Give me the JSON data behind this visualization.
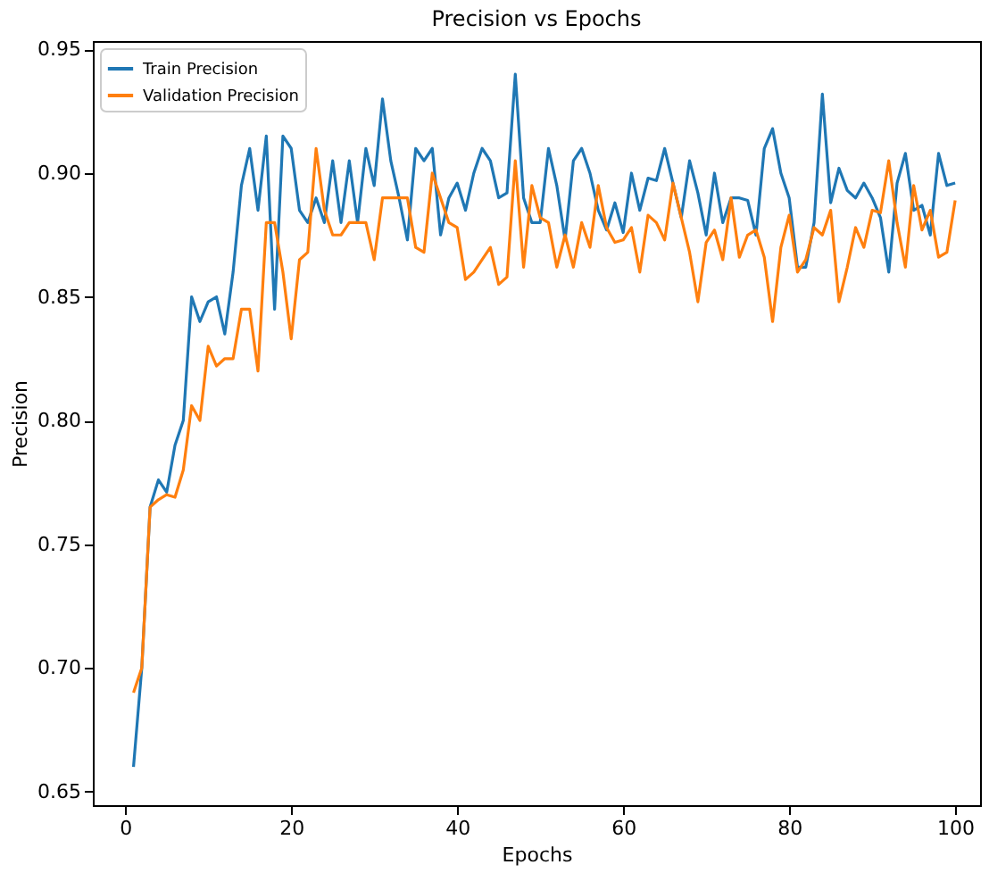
{
  "chart_data": {
    "type": "line",
    "title": "Precision vs Epochs",
    "xlabel": "Epochs",
    "ylabel": "Precision",
    "x": [
      1,
      2,
      3,
      4,
      5,
      6,
      7,
      8,
      9,
      10,
      11,
      12,
      13,
      14,
      15,
      16,
      17,
      18,
      19,
      20,
      21,
      22,
      23,
      24,
      25,
      26,
      27,
      28,
      29,
      30,
      31,
      32,
      33,
      34,
      35,
      36,
      37,
      38,
      39,
      40,
      41,
      42,
      43,
      44,
      45,
      46,
      47,
      48,
      49,
      50,
      51,
      52,
      53,
      54,
      55,
      56,
      57,
      58,
      59,
      60,
      61,
      62,
      63,
      64,
      65,
      66,
      67,
      68,
      69,
      70,
      71,
      72,
      73,
      74,
      75,
      76,
      77,
      78,
      79,
      80,
      81,
      82,
      83,
      84,
      85,
      86,
      87,
      88,
      89,
      90,
      91,
      92,
      93,
      94,
      95,
      96,
      97,
      98,
      99,
      100
    ],
    "series": [
      {
        "name": "Train Precision",
        "color": "#1f77b4",
        "values": [
          0.66,
          0.7,
          0.765,
          0.776,
          0.771,
          0.79,
          0.8,
          0.85,
          0.84,
          0.848,
          0.85,
          0.835,
          0.86,
          0.895,
          0.91,
          0.885,
          0.915,
          0.845,
          0.915,
          0.91,
          0.885,
          0.88,
          0.89,
          0.88,
          0.905,
          0.88,
          0.905,
          0.88,
          0.91,
          0.895,
          0.93,
          0.905,
          0.89,
          0.873,
          0.91,
          0.905,
          0.91,
          0.875,
          0.89,
          0.896,
          0.885,
          0.9,
          0.91,
          0.905,
          0.89,
          0.892,
          0.94,
          0.89,
          0.88,
          0.88,
          0.91,
          0.895,
          0.873,
          0.905,
          0.91,
          0.9,
          0.885,
          0.877,
          0.888,
          0.876,
          0.9,
          0.885,
          0.898,
          0.897,
          0.91,
          0.896,
          0.882,
          0.905,
          0.892,
          0.875,
          0.9,
          0.88,
          0.89,
          0.89,
          0.889,
          0.875,
          0.91,
          0.918,
          0.9,
          0.89,
          0.862,
          0.862,
          0.88,
          0.932,
          0.888,
          0.902,
          0.893,
          0.89,
          0.896,
          0.89,
          0.882,
          0.86,
          0.896,
          0.908,
          0.885,
          0.887,
          0.875,
          0.908,
          0.895,
          0.896
        ]
      },
      {
        "name": "Validation Precision",
        "color": "#ff7f0e",
        "values": [
          0.69,
          0.7,
          0.765,
          0.768,
          0.77,
          0.769,
          0.78,
          0.806,
          0.8,
          0.83,
          0.822,
          0.825,
          0.825,
          0.845,
          0.845,
          0.82,
          0.88,
          0.88,
          0.86,
          0.833,
          0.865,
          0.868,
          0.91,
          0.885,
          0.875,
          0.875,
          0.88,
          0.88,
          0.88,
          0.865,
          0.89,
          0.89,
          0.89,
          0.89,
          0.87,
          0.868,
          0.9,
          0.89,
          0.88,
          0.878,
          0.857,
          0.86,
          0.865,
          0.87,
          0.855,
          0.858,
          0.905,
          0.862,
          0.895,
          0.882,
          0.88,
          0.862,
          0.875,
          0.862,
          0.88,
          0.87,
          0.895,
          0.878,
          0.872,
          0.873,
          0.878,
          0.86,
          0.883,
          0.88,
          0.873,
          0.896,
          0.882,
          0.868,
          0.848,
          0.872,
          0.877,
          0.865,
          0.89,
          0.866,
          0.875,
          0.877,
          0.866,
          0.84,
          0.87,
          0.883,
          0.86,
          0.865,
          0.878,
          0.875,
          0.885,
          0.848,
          0.862,
          0.878,
          0.87,
          0.885,
          0.884,
          0.905,
          0.88,
          0.862,
          0.895,
          0.877,
          0.885,
          0.866,
          0.868,
          0.889
        ]
      }
    ],
    "xlim": [
      -3.9,
      103
    ],
    "xticks": [
      0,
      20,
      40,
      60,
      80,
      100
    ],
    "ylim": [
      0.6445,
      0.9534
    ],
    "yticks": [
      0.65,
      {
        "value": 0.7,
        "label": "0.70"
      },
      0.75,
      {
        "value": 0.8,
        "label": "0.80"
      },
      0.85,
      {
        "value": 0.9,
        "label": "0.90"
      },
      0.95
    ],
    "legend": "top left",
    "grid": false,
    "marker": "none",
    "line_style": "solid"
  }
}
